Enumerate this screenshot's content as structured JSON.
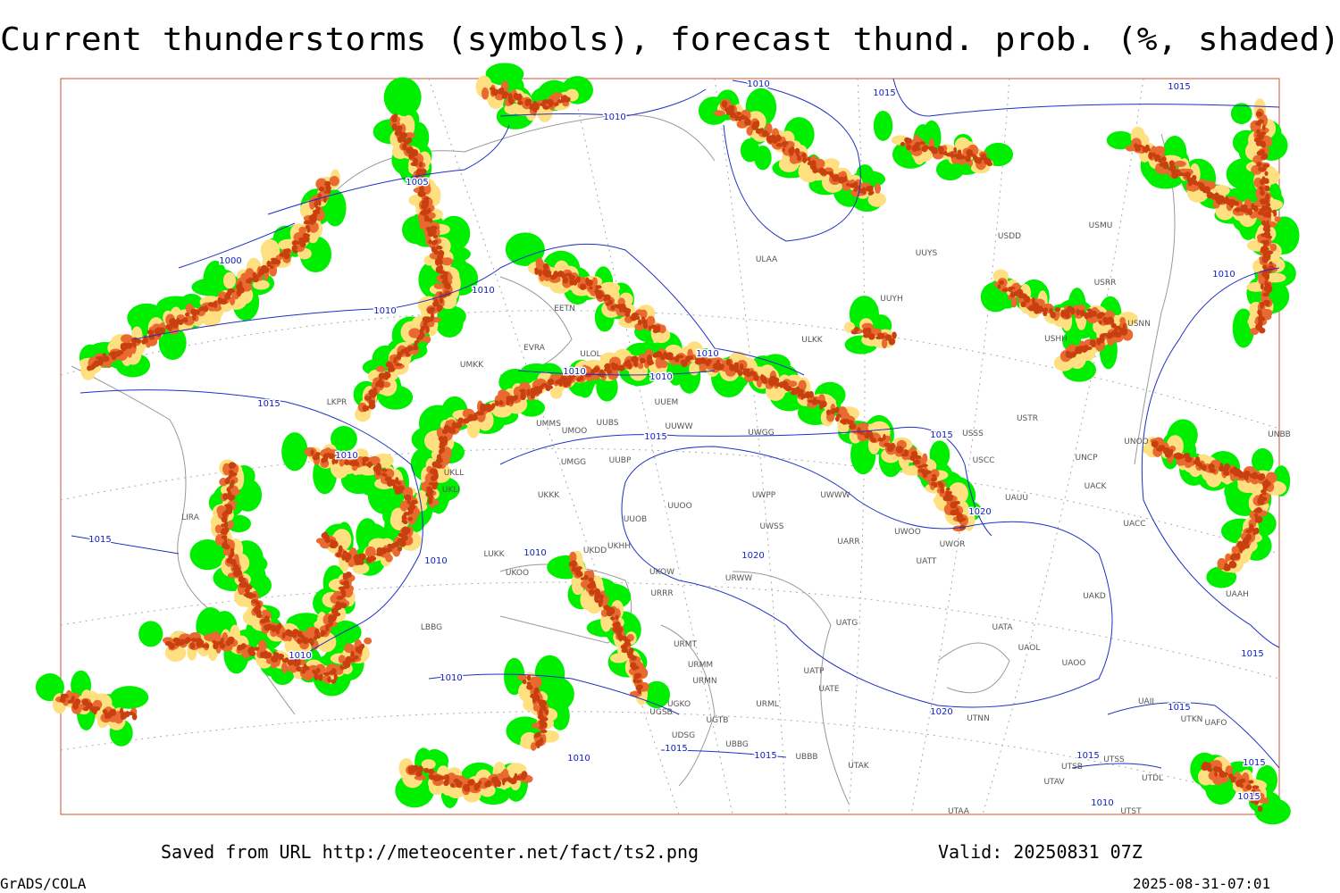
{
  "title": "Current thunderstorms (symbols), forecast thund. prob. (%, shaded)",
  "footer": {
    "source": "Saved from URL http://meteocenter.net/fact/ts2.png",
    "valid": "Valid: 20250831 07Z",
    "software": "GrADS/COLA",
    "timestamp": "2025-08-31-07:01"
  },
  "isobar_labels": [
    "1010",
    "1015",
    "1015",
    "1010",
    "1005",
    "1000",
    "1010",
    "1010",
    "1010",
    "1010",
    "1010",
    "1015",
    "1015",
    "1015",
    "1010",
    "1020",
    "1015",
    "1010",
    "1020",
    "1010",
    "1010",
    "1010",
    "1010",
    "1015",
    "1020",
    "1015",
    "1015",
    "1015",
    "1010",
    "1015",
    "1015",
    "1010",
    "1015"
  ],
  "stations": [
    "ULAA",
    "UUYS",
    "USDD",
    "USMU",
    "UUYH",
    "USRR",
    "USNN",
    "USHH",
    "ULKK",
    "EETN",
    "EVRA",
    "ULOL",
    "UMKK",
    "UUEM",
    "USTR",
    "UMMS",
    "UMOO",
    "UUBS",
    "UUWW",
    "UWGG",
    "USSS",
    "UNOO",
    "UNBB",
    "UMGG",
    "UUBP",
    "USCC",
    "UNCP",
    "UACK",
    "UKKK",
    "UUOO",
    "UWPP",
    "UWWW",
    "UAUU",
    "UUOB",
    "UWSS",
    "UACC",
    "UARR",
    "UWOR",
    "UWOO",
    "UKHH",
    "UKDD",
    "LUKK",
    "UATT",
    "UKOO",
    "UKOW",
    "URWW",
    "URRR",
    "UAKD",
    "UAAH",
    "LIRA",
    "LBBG",
    "URMT",
    "URMM",
    "URMN",
    "UATG",
    "UATA",
    "UAOL",
    "UAOO",
    "UATP",
    "UATE",
    "URML",
    "UGSB",
    "UGKO",
    "UGTB",
    "UBBG",
    "UDSG",
    "UBBB",
    "UTAK",
    "UTNN",
    "UTSB",
    "UTAV",
    "UTST",
    "UTAA",
    "UTSS",
    "UTDL",
    "UTKN",
    "UAFO",
    "UAII",
    "LKPR",
    "UKLL",
    "UKLI"
  ]
}
